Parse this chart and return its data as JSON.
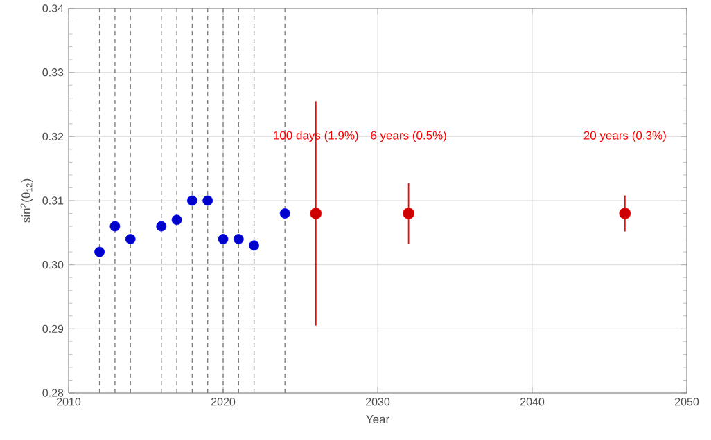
{
  "chart_data": {
    "type": "scatter",
    "xlabel": "Year",
    "ylabel": "sin$^{2}$(θ$_{12}$)",
    "xlim": [
      2010,
      2050
    ],
    "xticks": [
      2010,
      2020,
      2030,
      2040,
      2050
    ],
    "ylim": [
      0.28,
      0.34
    ],
    "yticks": [
      {
        "value": 0.28,
        "label": "0.28"
      },
      {
        "value": 0.29,
        "label": "0.29"
      },
      {
        "value": 0.3,
        "label": "0.30"
      },
      {
        "value": 0.31,
        "label": "0.31"
      },
      {
        "value": 0.32,
        "label": "0.32"
      },
      {
        "value": 0.33,
        "label": "0.33"
      },
      {
        "value": 0.34,
        "label": "0.34"
      }
    ],
    "grid": true,
    "series": [
      {
        "color": "#0000ff",
        "x": [
          2012,
          2013,
          2014,
          2016,
          2017,
          2018,
          2019,
          2020,
          2021,
          2022,
          2024
        ],
        "values": [
          0.302,
          0.306,
          0.304,
          0.306,
          0.307,
          0.31,
          0.31,
          0.304,
          0.304,
          0.303,
          0.308
        ]
      },
      {
        "color": "#ff0000",
        "x": [
          2026,
          2032,
          2046
        ],
        "values": [
          0.308,
          0.308,
          0.308
        ],
        "errors": [
          0.0175,
          0.0047,
          0.0028
        ]
      }
    ],
    "ref_lines": [
      {
        "axis": "x",
        "value": 2012,
        "color": "#808080",
        "line_style": "dashed"
      },
      {
        "axis": "x",
        "value": 2013,
        "color": "#808080",
        "line_style": "dashed"
      },
      {
        "axis": "x",
        "value": 2014,
        "color": "#808080",
        "line_style": "dashed"
      },
      {
        "axis": "x",
        "value": 2016,
        "color": "#808080",
        "line_style": "dashed"
      },
      {
        "axis": "x",
        "value": 2017,
        "color": "#808080",
        "line_style": "dashed"
      },
      {
        "axis": "x",
        "value": 2018,
        "color": "#808080",
        "line_style": "dashed"
      },
      {
        "axis": "x",
        "value": 2019,
        "color": "#808080",
        "line_style": "dashed"
      },
      {
        "axis": "x",
        "value": 2020,
        "color": "#808080",
        "line_style": "dashed"
      },
      {
        "axis": "x",
        "value": 2021,
        "color": "#808080",
        "line_style": "dashed"
      },
      {
        "axis": "x",
        "value": 2022,
        "color": "#808080",
        "line_style": "dashed"
      },
      {
        "axis": "x",
        "value": 2024,
        "color": "#808080",
        "line_style": "dashed"
      }
    ],
    "annotations": [
      "100 days (1.9%)",
      "6 years (0.5%)",
      "20 years  (0.3%)"
    ]
  }
}
